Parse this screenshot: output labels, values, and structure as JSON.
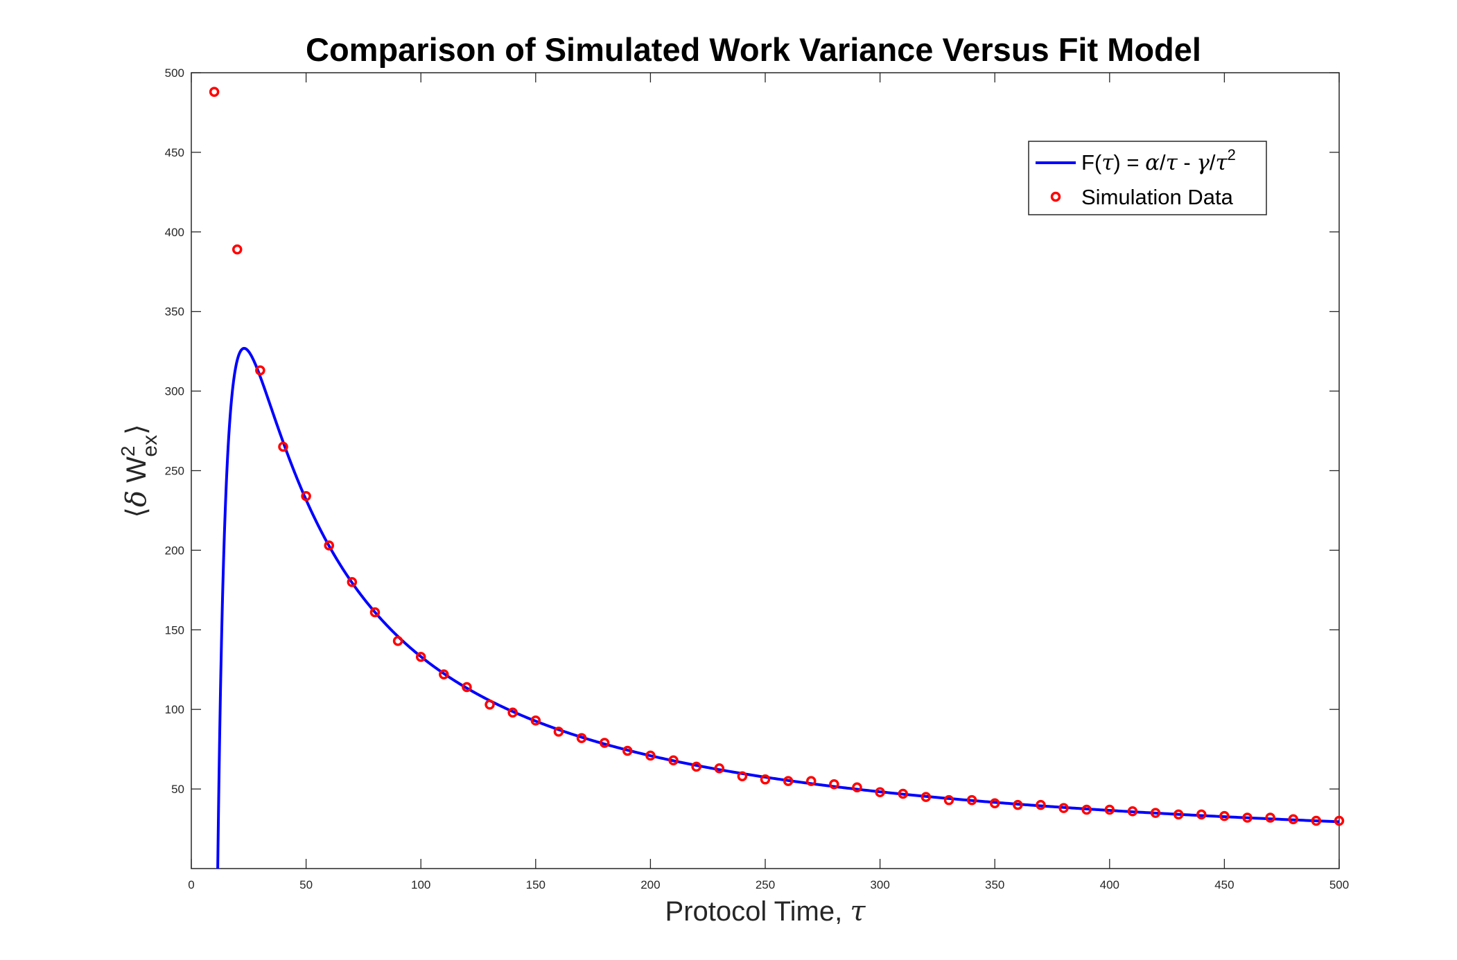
{
  "chart_data": {
    "type": "scatter",
    "title": "Comparison of Simulated Work Variance Versus Fit Model",
    "xlabel": {
      "text": "Protocol Time, ",
      "symbol": "τ"
    },
    "ylabel": {
      "open": "⟨",
      "delta": "δ",
      "w": "W",
      "sup": "2",
      "sub": "ex",
      "close": "⟩"
    },
    "xlim": [
      0,
      500
    ],
    "ylim": [
      0,
      500
    ],
    "xticks": [
      0,
      50,
      100,
      150,
      200,
      250,
      300,
      350,
      400,
      450,
      500
    ],
    "yticks": [
      50,
      100,
      150,
      200,
      250,
      300,
      350,
      400,
      450,
      500
    ],
    "legend_placement": "top-right",
    "grid": false,
    "colors": {
      "fit": "#0000ff",
      "data": "#ff0000",
      "axis": "#262626"
    },
    "series": [
      {
        "name": "F(τ) = α/τ - γ/τ2",
        "legend": {
          "f": "F(",
          "tau1": "τ",
          "eq": ") = ",
          "alpha": "α",
          "slash1": "/",
          "tau2": "τ",
          "minus": " - ",
          "gamma": "γ",
          "slash2": "/",
          "tau3": "τ",
          "sup": "2"
        },
        "type": "line",
        "model": {
          "alpha": 15050,
          "gamma": 173250
        },
        "x_range": [
          11.5,
          500
        ]
      },
      {
        "name": "Simulation Data",
        "type": "scatter",
        "x": [
          10,
          20,
          30,
          40,
          50,
          60,
          70,
          80,
          90,
          100,
          110,
          120,
          130,
          140,
          150,
          160,
          170,
          180,
          190,
          200,
          210,
          220,
          230,
          240,
          250,
          260,
          270,
          280,
          290,
          300,
          310,
          320,
          330,
          340,
          350,
          360,
          370,
          380,
          390,
          400,
          410,
          420,
          430,
          440,
          450,
          460,
          470,
          480,
          490,
          500
        ],
        "y": [
          488,
          389,
          313,
          265,
          234,
          203,
          180,
          161,
          143,
          133,
          122,
          114,
          103,
          98,
          93,
          86,
          82,
          79,
          74,
          71,
          68,
          64,
          63,
          58,
          56,
          55,
          55,
          53,
          51,
          48,
          47,
          45,
          43,
          43,
          41,
          40,
          40,
          38,
          37,
          37,
          36,
          35,
          34,
          34,
          33,
          32,
          32,
          31,
          30,
          30
        ]
      }
    ]
  }
}
